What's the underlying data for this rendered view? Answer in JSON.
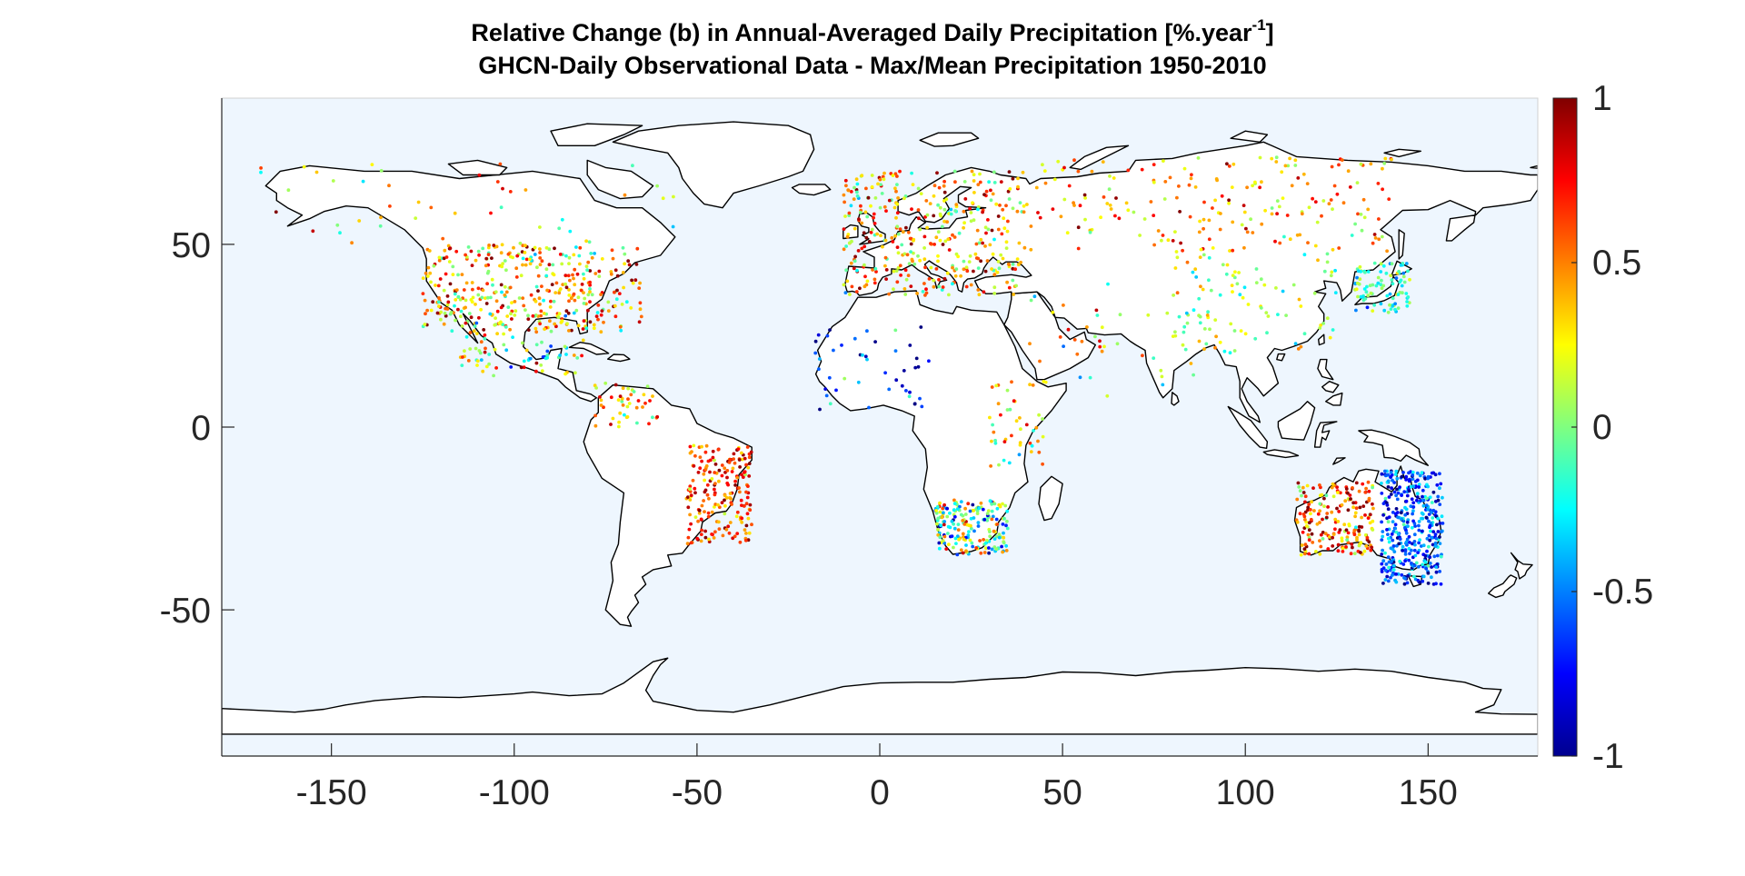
{
  "chart_data": {
    "type": "scatter",
    "title": {
      "prefix": "Relative Change (b) in Annual-Averaged Daily Precipitation [%.year",
      "superscript": "-1",
      "suffix": "]"
    },
    "subtitle": "GHCN-Daily Observational Data - Max/Mean Precipitation 1950-2010",
    "xlabel": "",
    "ylabel": "",
    "xlim": [
      -180,
      180
    ],
    "ylim": [
      -90,
      90
    ],
    "x_ticks": [
      -150,
      -100,
      -50,
      0,
      50,
      100,
      150
    ],
    "x_tick_labels": [
      "-150",
      "-100",
      "-50",
      "0",
      "50",
      "100",
      "150"
    ],
    "y_ticks": [
      50,
      0,
      -50
    ],
    "y_tick_labels": [
      "50",
      "0",
      "-50"
    ],
    "grid": false,
    "colorbar": {
      "colormap": "jet",
      "limits": [
        -1,
        1
      ],
      "ticks": [
        1,
        0.5,
        0,
        -0.5,
        -1
      ],
      "tick_labels": [
        "1",
        "0.5",
        "0",
        "-0.5",
        "-1"
      ],
      "placement": "right"
    },
    "colors": {
      "ocean": "#eef6fe",
      "land": "#ffffff",
      "coastline": "#000000"
    },
    "station_regions": [
      {
        "region": "North America",
        "lon": [
          -125,
          -65
        ],
        "lat": [
          26,
          50
        ],
        "mean_value": 0.4,
        "spread": 0.5,
        "density": "very high"
      },
      {
        "region": "Alaska / Canada",
        "lon": [
          -170,
          -55
        ],
        "lat": [
          50,
          72
        ],
        "mean_value": 0.3,
        "spread": 0.5,
        "density": "low"
      },
      {
        "region": "Mexico / Central America",
        "lon": [
          -115,
          -80
        ],
        "lat": [
          14,
          32
        ],
        "mean_value": 0.1,
        "spread": 0.6,
        "density": "medium"
      },
      {
        "region": "Europe",
        "lon": [
          -10,
          40
        ],
        "lat": [
          36,
          70
        ],
        "mean_value": 0.4,
        "spread": 0.5,
        "density": "very high"
      },
      {
        "region": "Northern Asia",
        "lon": [
          40,
          140
        ],
        "lat": [
          48,
          74
        ],
        "mean_value": 0.45,
        "spread": 0.4,
        "density": "high"
      },
      {
        "region": "China / East Asia",
        "lon": [
          80,
          125
        ],
        "lat": [
          20,
          48
        ],
        "mean_value": 0.05,
        "spread": 0.3,
        "density": "medium"
      },
      {
        "region": "Japan",
        "lon": [
          130,
          145
        ],
        "lat": [
          31,
          45
        ],
        "mean_value": -0.15,
        "spread": 0.3,
        "density": "medium"
      },
      {
        "region": "India / Middle East",
        "lon": [
          40,
          90
        ],
        "lat": [
          8,
          40
        ],
        "mean_value": 0.2,
        "spread": 0.5,
        "density": "low"
      },
      {
        "region": "West Africa",
        "lon": [
          -18,
          15
        ],
        "lat": [
          4,
          28
        ],
        "mean_value": -0.7,
        "spread": 0.4,
        "density": "low"
      },
      {
        "region": "East Africa",
        "lon": [
          30,
          45
        ],
        "lat": [
          -12,
          15
        ],
        "mean_value": 0.2,
        "spread": 0.5,
        "density": "low"
      },
      {
        "region": "Southern Africa",
        "lon": [
          15,
          35
        ],
        "lat": [
          -35,
          -20
        ],
        "mean_value": -0.1,
        "spread": 0.6,
        "density": "high"
      },
      {
        "region": "Eastern Brazil",
        "lon": [
          -53,
          -35
        ],
        "lat": [
          -32,
          -5
        ],
        "mean_value": 0.65,
        "spread": 0.35,
        "density": "high"
      },
      {
        "region": "Northern South America",
        "lon": [
          -78,
          -60
        ],
        "lat": [
          0,
          12
        ],
        "mean_value": 0.4,
        "spread": 0.4,
        "density": "low"
      },
      {
        "region": "Western Australia",
        "lon": [
          114,
          135
        ],
        "lat": [
          -35,
          -15
        ],
        "mean_value": 0.6,
        "spread": 0.5,
        "density": "high"
      },
      {
        "region": "Eastern Australia",
        "lon": [
          137,
          154
        ],
        "lat": [
          -43,
          -12
        ],
        "mean_value": -0.6,
        "spread": 0.35,
        "density": "very high"
      }
    ]
  }
}
